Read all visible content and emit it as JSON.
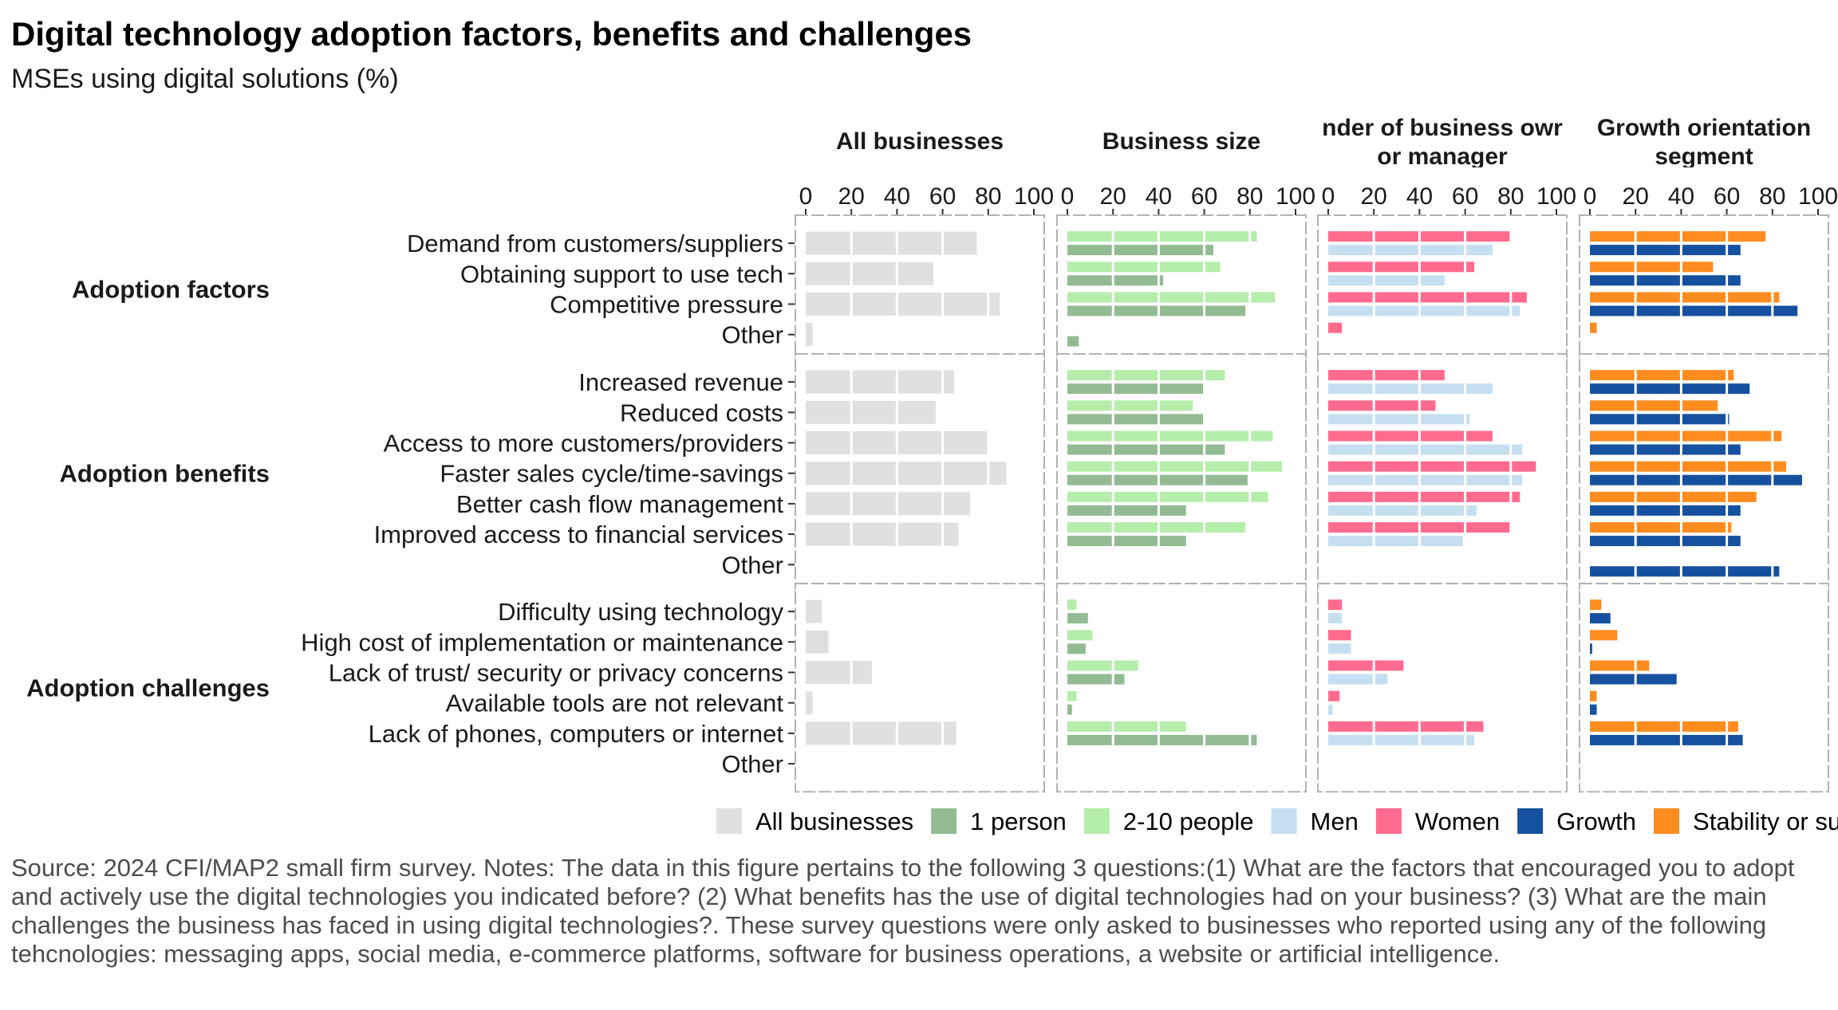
{
  "chart_data": {
    "type": "bar",
    "orientation": "horizontal",
    "title": "Digital technology adoption factors, benefits and challenges",
    "subtitle": "MSEs using digital solutions (%)",
    "xlim": [
      0,
      100
    ],
    "x_ticks": [
      "0",
      "20",
      "40",
      "60",
      "80",
      "100"
    ],
    "facets": [
      "All businesses",
      "Business size",
      "nder of business owr\nor manager",
      "Growth orientation\nsegment"
    ],
    "groups": [
      {
        "name": "Adoption factors",
        "categories": [
          "Demand from customers/suppliers",
          "Obtaining support to use tech",
          "Competitive pressure",
          "Other"
        ]
      },
      {
        "name": "Adoption benefits",
        "categories": [
          "Increased revenue",
          "Reduced costs",
          "Access to more customers/providers",
          "Faster sales cycle/time-savings",
          "Better cash flow management",
          "Improved access to financial services",
          "Other"
        ]
      },
      {
        "name": "Adoption challenges",
        "categories": [
          "Difficulty using technology",
          "High cost of implementation or maintenance",
          "Lack of trust/ security or privacy concerns",
          "Available tools are not relevant",
          "Lack of phones, computers or internet",
          "Other"
        ]
      }
    ],
    "series": [
      {
        "name": "All businesses",
        "facet": 0,
        "color": "#e0e0e0",
        "values": [
          [
            75,
            56,
            85,
            3
          ],
          [
            65,
            57,
            80,
            88,
            72,
            67,
            0
          ],
          [
            7,
            10,
            29,
            3,
            66,
            0
          ]
        ]
      },
      {
        "name": "2-10 people",
        "facet": 1,
        "color": "#b5edab",
        "values": [
          [
            83,
            67,
            91,
            0
          ],
          [
            69,
            55,
            90,
            94,
            88,
            78,
            0
          ],
          [
            4,
            11,
            31,
            4,
            52,
            0
          ]
        ]
      },
      {
        "name": "1 person",
        "facet": 1,
        "color": "#93bb93",
        "values": [
          [
            64,
            42,
            78,
            5
          ],
          [
            60,
            60,
            69,
            79,
            52,
            52,
            0
          ],
          [
            9,
            8,
            25,
            2,
            83,
            0
          ]
        ]
      },
      {
        "name": "Women",
        "facet": 2,
        "color": "#ff6b8e",
        "values": [
          [
            80,
            64,
            87,
            6
          ],
          [
            51,
            47,
            72,
            91,
            84,
            80,
            0
          ],
          [
            6,
            10,
            33,
            5,
            68,
            0
          ]
        ]
      },
      {
        "name": "Men",
        "facet": 2,
        "color": "#c6dff0",
        "values": [
          [
            72,
            51,
            84,
            0
          ],
          [
            72,
            62,
            85,
            85,
            65,
            59,
            0
          ],
          [
            6,
            10,
            26,
            2,
            64,
            0
          ]
        ]
      },
      {
        "name": "Stability or survival",
        "facet": 3,
        "color": "#ff8c1f",
        "values": [
          [
            77,
            54,
            83,
            3
          ],
          [
            63,
            56,
            84,
            86,
            73,
            62,
            0
          ],
          [
            5,
            12,
            26,
            3,
            65,
            0
          ]
        ]
      },
      {
        "name": "Growth",
        "facet": 3,
        "color": "#15519f",
        "values": [
          [
            66,
            66,
            91,
            0
          ],
          [
            70,
            61,
            66,
            93,
            66,
            66,
            83
          ],
          [
            9,
            1,
            38,
            3,
            67,
            0
          ]
        ]
      }
    ],
    "legend": {
      "position": "bottom",
      "items": [
        "All businesses",
        "1 person",
        "2-10 people",
        "Men",
        "Women",
        "Growth",
        "Stability or su"
      ]
    },
    "grid": true
  },
  "source_note": "Source: 2024 CFI/MAP2 small firm survey. Notes: The data in this figure pertains to the following 3 questions:(1) What are the factors that encouraged you to adopt and actively use the digital technologies you indicated before? (2) What benefits has the use of digital technologies had on your business? (3) What are the main challenges the business has faced in using digital technologies?. These survey questions were only asked to businesses who reported using any of the following tehcnologies: messaging apps, social media, e-commerce platforms, software for business operations, a website or artificial intelligence."
}
